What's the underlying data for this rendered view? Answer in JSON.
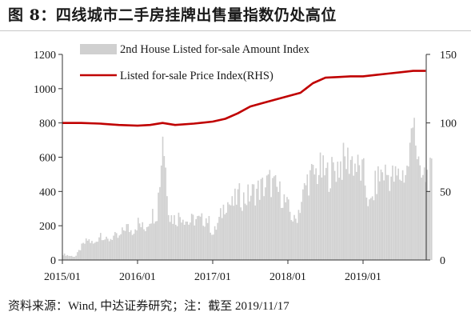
{
  "figure": {
    "title": "图 8：四线城市二手房挂牌出售量指数仍处高位",
    "source": "资料来源：Wind, 中达证券研究；注：截至 2019/11/17"
  },
  "chart_data": {
    "type": "bar",
    "x_labels": [
      "2015/01",
      "2016/01",
      "2017/01",
      "2018/01",
      "2019/01"
    ],
    "x_range": [
      "2015/01",
      "2019/11"
    ],
    "left_axis": {
      "ticks": [
        "0",
        "200",
        "400",
        "600",
        "800",
        "1000",
        "1200"
      ],
      "ylim": [
        0,
        1200
      ]
    },
    "right_axis": {
      "ticks": [
        "0",
        "50",
        "100",
        "150"
      ],
      "ylim": [
        0,
        150
      ]
    },
    "legend_position": "top",
    "colors": {
      "bars": "#d0d0d0",
      "line": "#c00000"
    },
    "series": [
      {
        "name": "2nd House Listed for-sale Amount Index",
        "type": "bar",
        "axis": "left",
        "frequency": "weekly",
        "points": [
          [
            "2015-01",
            35
          ],
          [
            "2015-02",
            25
          ],
          [
            "2015-03",
            20
          ],
          [
            "2015-04",
            80
          ],
          [
            "2015-05",
            120
          ],
          [
            "2015-06",
            90
          ],
          [
            "2015-07",
            160
          ],
          [
            "2015-08",
            110
          ],
          [
            "2015-09",
            140
          ],
          [
            "2015-10",
            130
          ],
          [
            "2015-11",
            200
          ],
          [
            "2015-12",
            170
          ],
          [
            "2016-01",
            220
          ],
          [
            "2016-02",
            180
          ],
          [
            "2016-03",
            260
          ],
          [
            "2016-04",
            280
          ],
          [
            "2016-05",
            720
          ],
          [
            "2016-06",
            260
          ],
          [
            "2016-07",
            240
          ],
          [
            "2016-08",
            270
          ],
          [
            "2016-09",
            220
          ],
          [
            "2016-10",
            240
          ],
          [
            "2016-11",
            230
          ],
          [
            "2016-12",
            250
          ],
          [
            "2017-01",
            150
          ],
          [
            "2017-02",
            240
          ],
          [
            "2017-03",
            350
          ],
          [
            "2017-04",
            320
          ],
          [
            "2017-05",
            380
          ],
          [
            "2017-06",
            360
          ],
          [
            "2017-07",
            390
          ],
          [
            "2017-08",
            410
          ],
          [
            "2017-09",
            430
          ],
          [
            "2017-10",
            460
          ],
          [
            "2017-11",
            420
          ],
          [
            "2017-12",
            380
          ],
          [
            "2018-01",
            300
          ],
          [
            "2018-02",
            220
          ],
          [
            "2018-03",
            340
          ],
          [
            "2018-04",
            470
          ],
          [
            "2018-05",
            500
          ],
          [
            "2018-06",
            530
          ],
          [
            "2018-07",
            500
          ],
          [
            "2018-08",
            520
          ],
          [
            "2018-09",
            560
          ],
          [
            "2018-10",
            580
          ],
          [
            "2018-11",
            600
          ],
          [
            "2018-12",
            540
          ],
          [
            "2019-01",
            500
          ],
          [
            "2019-02",
            300
          ],
          [
            "2019-03",
            460
          ],
          [
            "2019-04",
            520
          ],
          [
            "2019-05",
            500
          ],
          [
            "2019-06",
            480
          ],
          [
            "2019-07",
            500
          ],
          [
            "2019-08",
            530
          ],
          [
            "2019-09",
            830
          ],
          [
            "2019-10",
            470
          ],
          [
            "2019-11",
            500
          ]
        ],
        "notes_on_peaks": {
          "2016-05": 720,
          "2019-09": 830
        }
      },
      {
        "name": "Listed for-sale Price Index(RHS)",
        "type": "line",
        "axis": "right",
        "points": [
          [
            "2015-01",
            100
          ],
          [
            "2015-04",
            100
          ],
          [
            "2015-07",
            99.5
          ],
          [
            "2015-10",
            98.5
          ],
          [
            "2016-01",
            98
          ],
          [
            "2016-03",
            98.5
          ],
          [
            "2016-05",
            100
          ],
          [
            "2016-07",
            98.5
          ],
          [
            "2016-10",
            99.5
          ],
          [
            "2017-01",
            101
          ],
          [
            "2017-03",
            103
          ],
          [
            "2017-05",
            107
          ],
          [
            "2017-07",
            112
          ],
          [
            "2017-09",
            114.5
          ],
          [
            "2017-11",
            117
          ],
          [
            "2018-01",
            119.5
          ],
          [
            "2018-03",
            122
          ],
          [
            "2018-05",
            129
          ],
          [
            "2018-07",
            133
          ],
          [
            "2018-09",
            133.5
          ],
          [
            "2018-11",
            134
          ],
          [
            "2019-01",
            134
          ],
          [
            "2019-03",
            135
          ],
          [
            "2019-05",
            136
          ],
          [
            "2019-07",
            137
          ],
          [
            "2019-09",
            138
          ],
          [
            "2019-11",
            138
          ]
        ]
      }
    ]
  }
}
